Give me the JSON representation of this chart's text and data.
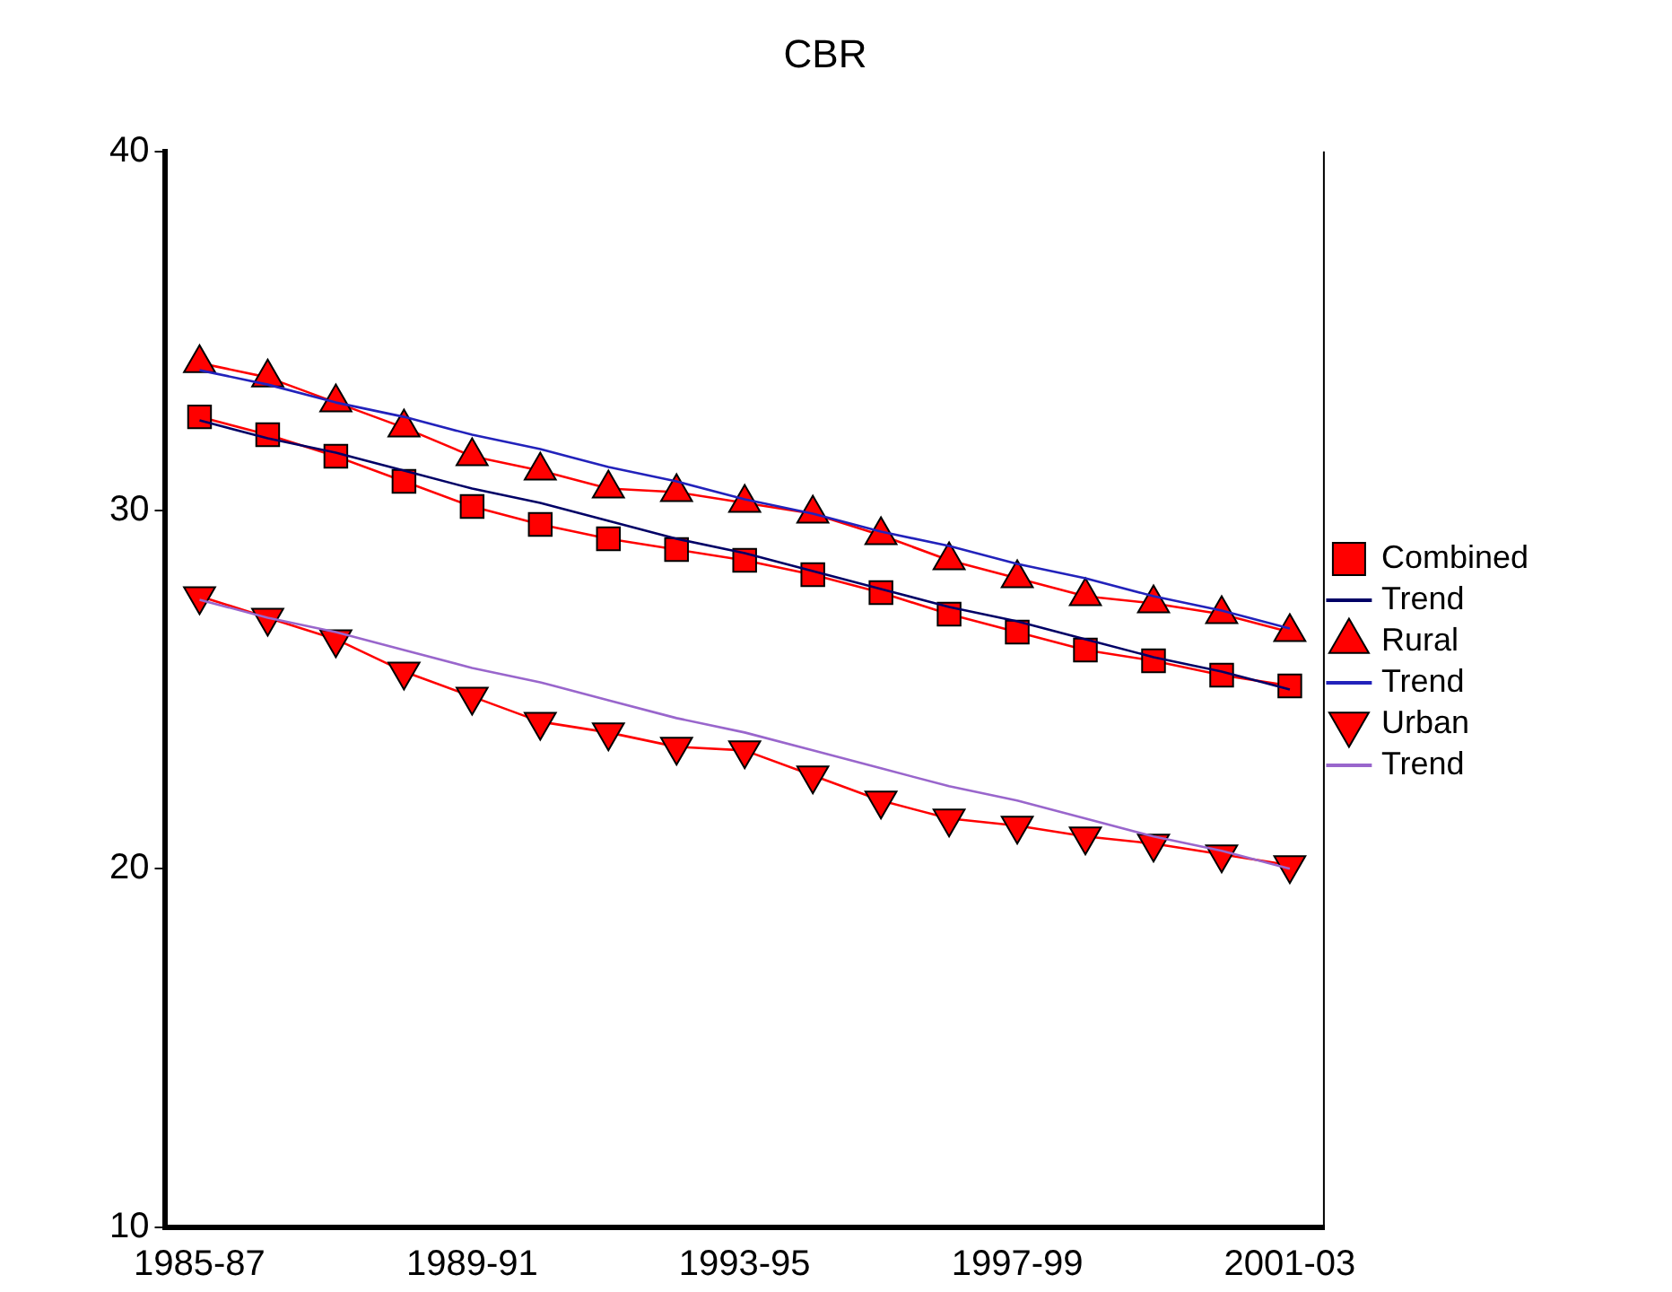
{
  "chart_data": {
    "type": "line",
    "title": "CBR",
    "categories": [
      "1985-87",
      null,
      null,
      null,
      "1989-91",
      null,
      null,
      null,
      "1993-95",
      null,
      null,
      null,
      "1997-99",
      null,
      null,
      null,
      "2001-03"
    ],
    "ylim": [
      10,
      40
    ],
    "yticks": [
      10,
      20,
      30,
      40
    ],
    "grid": false,
    "legend": "right",
    "line_style": "solid",
    "series": [
      {
        "name": "Combined",
        "color": "#ff0000",
        "marker": "square",
        "values": [
          32.6,
          32.1,
          31.5,
          30.8,
          30.1,
          29.6,
          29.2,
          28.9,
          28.6,
          28.2,
          27.7,
          27.1,
          26.6,
          26.1,
          25.8,
          25.4,
          25.1
        ]
      },
      {
        "name": "Trend",
        "color": "#000066",
        "marker": "none",
        "values": [
          32.5,
          32.0,
          31.6,
          31.1,
          30.6,
          30.2,
          29.7,
          29.2,
          28.8,
          28.3,
          27.8,
          27.3,
          26.9,
          26.4,
          25.9,
          25.5,
          25.0
        ]
      },
      {
        "name": "Rural",
        "color": "#ff0000",
        "marker": "triangle",
        "values": [
          34.1,
          33.7,
          33.0,
          32.3,
          31.5,
          31.1,
          30.6,
          30.5,
          30.2,
          29.9,
          29.3,
          28.6,
          28.1,
          27.6,
          27.4,
          27.1,
          26.6
        ]
      },
      {
        "name": "Trend",
        "color": "#2222bb",
        "marker": "none",
        "values": [
          33.9,
          33.5,
          33.0,
          32.6,
          32.1,
          31.7,
          31.2,
          30.8,
          30.3,
          29.9,
          29.4,
          29.0,
          28.5,
          28.1,
          27.6,
          27.2,
          26.7
        ]
      },
      {
        "name": "Urban",
        "color": "#ff0000",
        "marker": "triangle-down",
        "values": [
          27.6,
          27.0,
          26.4,
          25.5,
          24.8,
          24.1,
          23.8,
          23.4,
          23.3,
          22.6,
          21.9,
          21.4,
          21.2,
          20.9,
          20.7,
          20.4,
          20.1
        ]
      },
      {
        "name": "Trend",
        "color": "#9966cc",
        "marker": "none",
        "values": [
          27.5,
          27.0,
          26.6,
          26.1,
          25.6,
          25.2,
          24.7,
          24.2,
          23.8,
          23.3,
          22.8,
          22.3,
          21.9,
          21.4,
          20.9,
          20.5,
          20.0
        ]
      }
    ]
  }
}
